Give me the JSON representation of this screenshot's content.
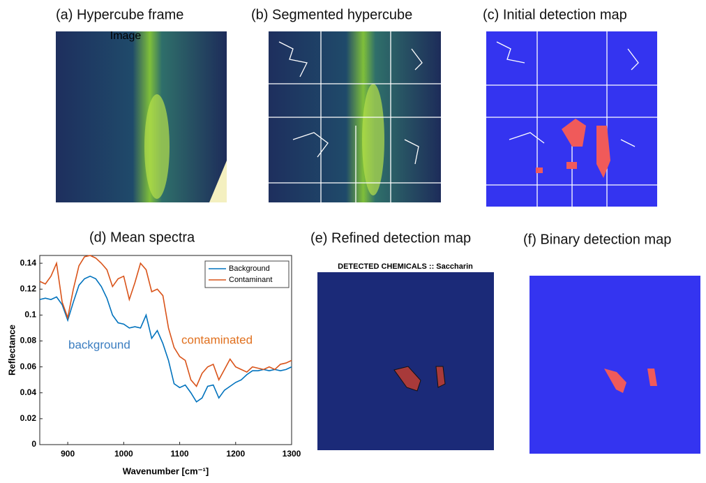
{
  "panels": {
    "a": {
      "title": "(a) Hypercube frame",
      "caption": "Image"
    },
    "b": {
      "title": "(b) Segmented hypercube"
    },
    "c": {
      "title": "(c) Initial detection map"
    },
    "e": {
      "title": "(e) Refined detection map",
      "header": "DETECTED CHEMICALS :: Saccharin"
    },
    "f": {
      "title": "(f) Binary detection map"
    }
  },
  "chart_data": {
    "type": "line",
    "title": "(d) Mean spectra",
    "xlabel": "Wavenumber [cm⁻¹]",
    "ylabel": "Reflectance",
    "x": [
      850,
      860,
      870,
      880,
      890,
      900,
      910,
      920,
      930,
      940,
      950,
      960,
      970,
      980,
      990,
      1000,
      1010,
      1020,
      1030,
      1040,
      1050,
      1060,
      1070,
      1080,
      1090,
      1100,
      1110,
      1120,
      1130,
      1140,
      1150,
      1160,
      1170,
      1180,
      1190,
      1200,
      1210,
      1220,
      1230,
      1240,
      1250,
      1260,
      1270,
      1280,
      1290,
      1300
    ],
    "series": [
      {
        "name": "Background",
        "color": "#0072bd",
        "values": [
          0.112,
          0.113,
          0.112,
          0.114,
          0.108,
          0.096,
          0.11,
          0.123,
          0.128,
          0.13,
          0.128,
          0.122,
          0.113,
          0.1,
          0.094,
          0.093,
          0.09,
          0.091,
          0.09,
          0.1,
          0.082,
          0.088,
          0.078,
          0.065,
          0.047,
          0.044,
          0.046,
          0.04,
          0.033,
          0.036,
          0.045,
          0.046,
          0.036,
          0.042,
          0.045,
          0.048,
          0.05,
          0.054,
          0.057,
          0.057,
          0.058,
          0.057,
          0.058,
          0.057,
          0.058,
          0.06
        ]
      },
      {
        "name": "Contaminant",
        "color": "#d95319",
        "values": [
          0.126,
          0.124,
          0.13,
          0.14,
          0.11,
          0.098,
          0.12,
          0.138,
          0.145,
          0.146,
          0.144,
          0.14,
          0.135,
          0.122,
          0.128,
          0.13,
          0.112,
          0.125,
          0.14,
          0.135,
          0.118,
          0.12,
          0.115,
          0.09,
          0.075,
          0.068,
          0.065,
          0.05,
          0.045,
          0.055,
          0.06,
          0.062,
          0.05,
          0.058,
          0.066,
          0.06,
          0.058,
          0.056,
          0.06,
          0.059,
          0.058,
          0.06,
          0.058,
          0.062,
          0.063,
          0.065
        ]
      }
    ],
    "annotations": [
      {
        "text": "background",
        "color": "#3a7dc0"
      },
      {
        "text": "contaminated",
        "color": "#e0701e"
      }
    ],
    "xlim": [
      850,
      1300
    ],
    "xticks": [
      900,
      1000,
      1100,
      1200,
      1300
    ],
    "ylim": [
      0,
      0.146
    ],
    "yticks": [
      0,
      0.02,
      0.04,
      0.06,
      0.08,
      0.1,
      0.12,
      0.14
    ],
    "legend": "northeast"
  }
}
